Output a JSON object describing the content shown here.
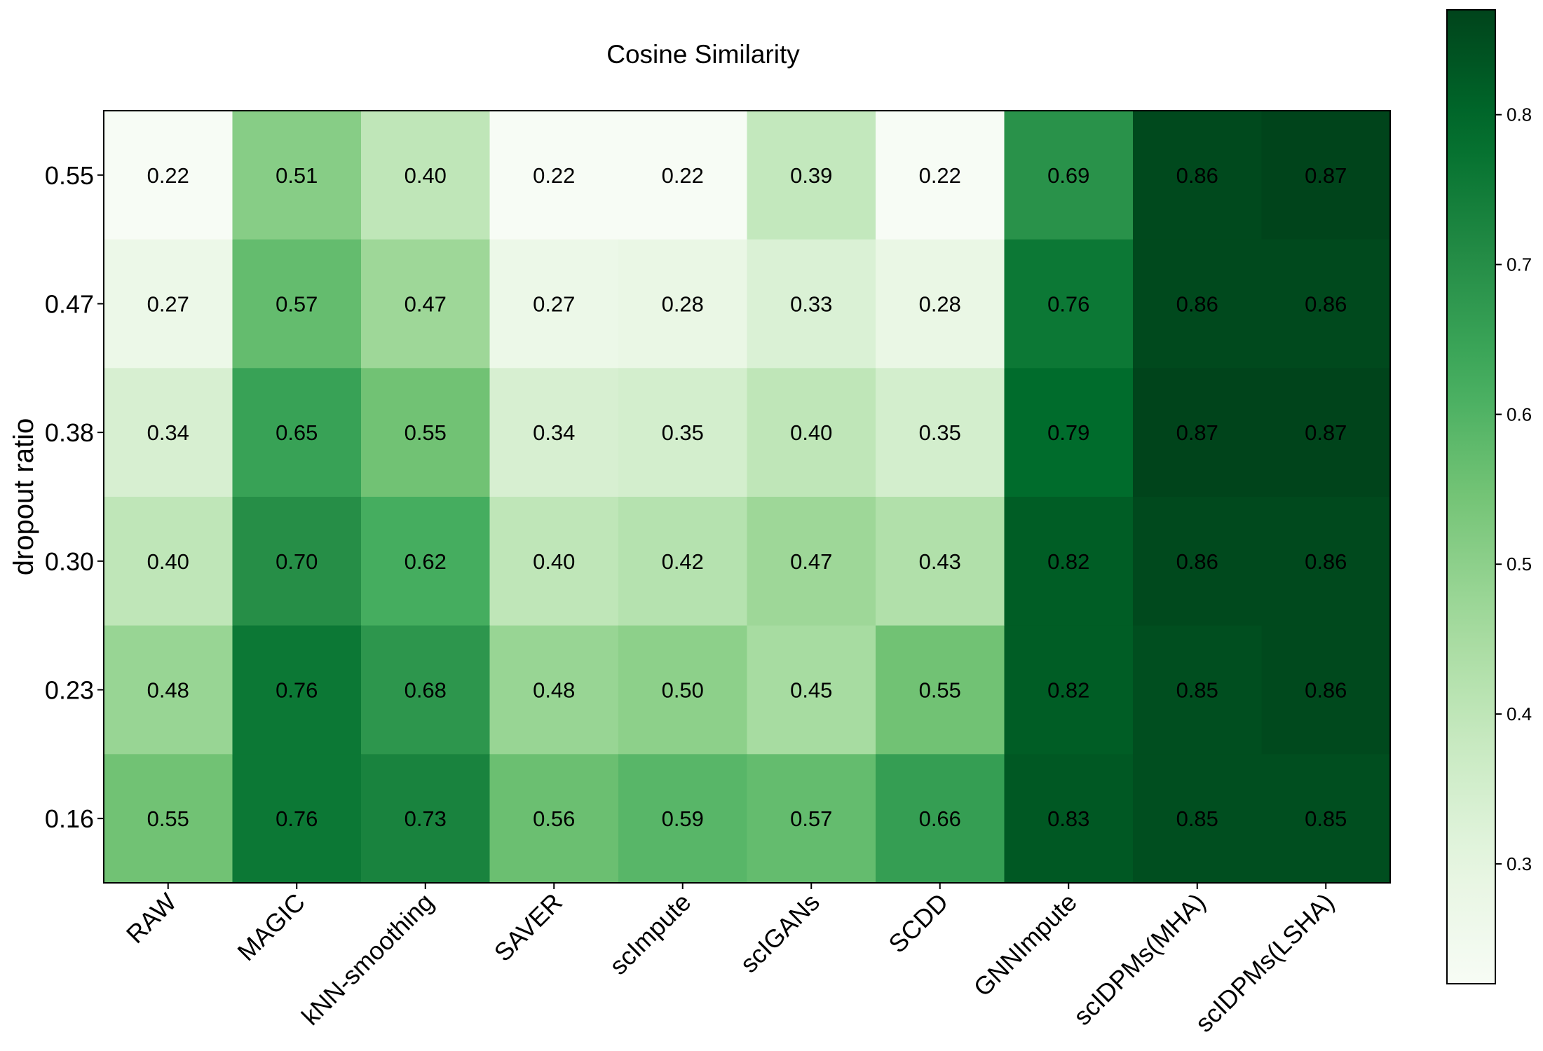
{
  "chart_data": {
    "type": "heatmap",
    "title": "Cosine Similarity",
    "ylabel": "dropout ratio",
    "xlabel": "",
    "columns": [
      "RAW",
      "MAGIC",
      "kNN-smoothing",
      "SAVER",
      "scImpute",
      "scIGANs",
      "SCDD",
      "GNNImpute",
      "scIDPMs(MHA)",
      "scIDPMs(LSHA)"
    ],
    "rows": [
      "0.55",
      "0.47",
      "0.38",
      "0.30",
      "0.23",
      "0.16"
    ],
    "values": [
      [
        0.22,
        0.51,
        0.4,
        0.22,
        0.22,
        0.39,
        0.22,
        0.69,
        0.86,
        0.87
      ],
      [
        0.27,
        0.57,
        0.47,
        0.27,
        0.28,
        0.33,
        0.28,
        0.76,
        0.86,
        0.86
      ],
      [
        0.34,
        0.65,
        0.55,
        0.34,
        0.35,
        0.4,
        0.35,
        0.79,
        0.87,
        0.87
      ],
      [
        0.4,
        0.7,
        0.62,
        0.4,
        0.42,
        0.47,
        0.43,
        0.82,
        0.86,
        0.86
      ],
      [
        0.48,
        0.76,
        0.68,
        0.48,
        0.5,
        0.45,
        0.55,
        0.82,
        0.85,
        0.86
      ],
      [
        0.55,
        0.76,
        0.73,
        0.56,
        0.59,
        0.57,
        0.66,
        0.83,
        0.85,
        0.85
      ]
    ],
    "colormap": "Greens",
    "colorbar": {
      "min": 0.22,
      "max": 0.87,
      "ticks": [
        0.3,
        0.4,
        0.5,
        0.6,
        0.7,
        0.8
      ],
      "tick_labels": [
        "0.3",
        "0.4",
        "0.5",
        "0.6",
        "0.7",
        "0.8"
      ],
      "position": "right"
    },
    "grid": false,
    "legend": "none"
  }
}
